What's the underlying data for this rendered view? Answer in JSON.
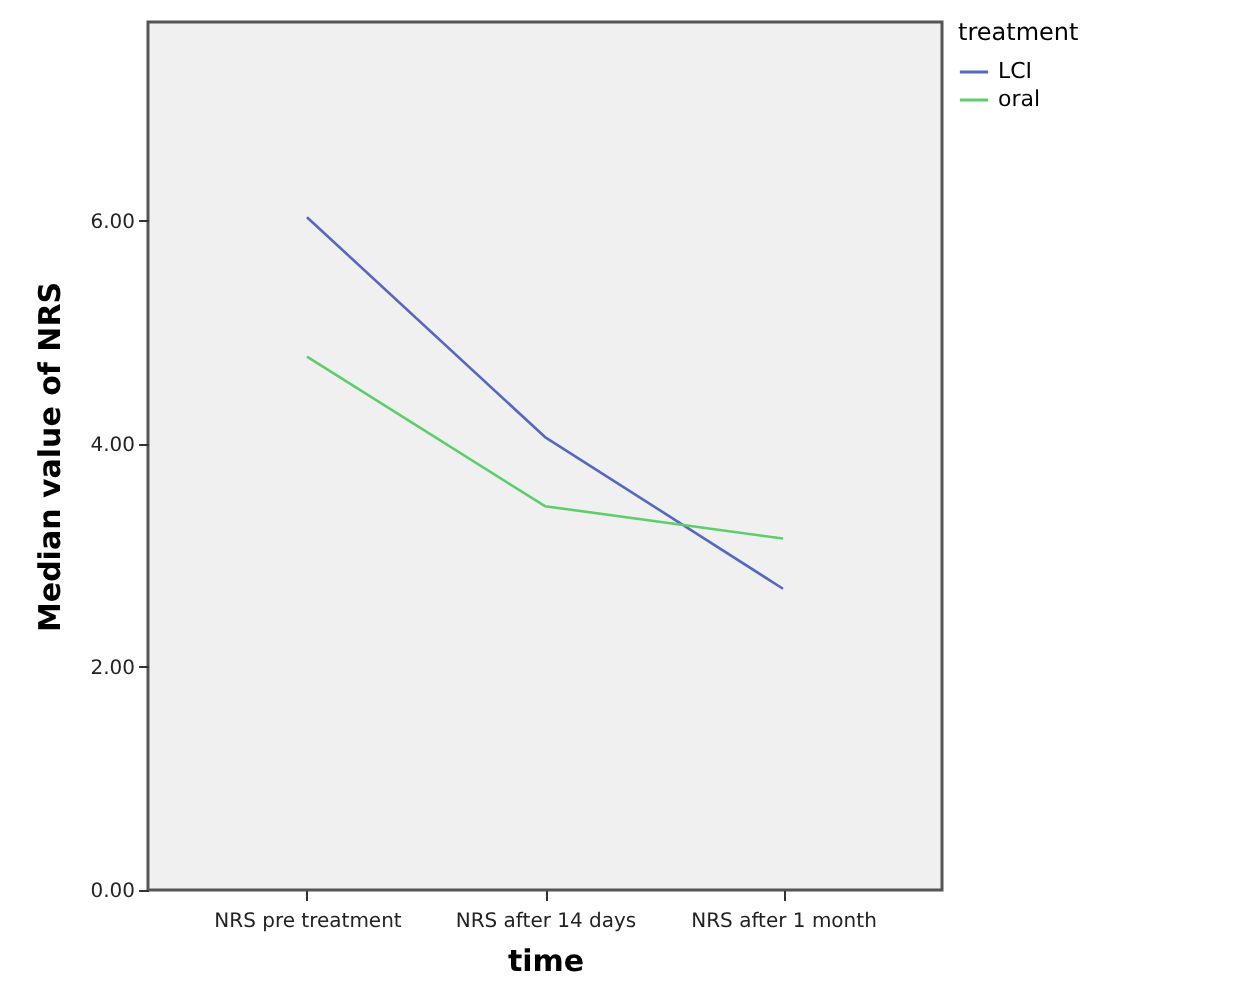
{
  "chart_data": {
    "type": "line",
    "xlabel": "time",
    "ylabel": "Median value of NRS",
    "legend_title": "treatment",
    "categories": [
      "NRS pre treatment",
      "NRS after 14 days",
      "NRS after 1 month"
    ],
    "series": [
      {
        "name": "LCI",
        "color": "#5468c2",
        "values": [
          6.03,
          4.06,
          2.7
        ]
      },
      {
        "name": "oral",
        "color": "#5cce6a",
        "values": [
          4.78,
          3.44,
          3.15
        ]
      }
    ],
    "ylim": [
      0,
      7.78
    ],
    "yticks": [
      {
        "value": 0,
        "label": "0.00"
      },
      {
        "value": 2,
        "label": "2.00"
      },
      {
        "value": 4,
        "label": "4.00"
      },
      {
        "value": 6,
        "label": "6.00"
      }
    ],
    "grid": false,
    "legend": "top right",
    "marker": "none",
    "line_style": "solid"
  }
}
